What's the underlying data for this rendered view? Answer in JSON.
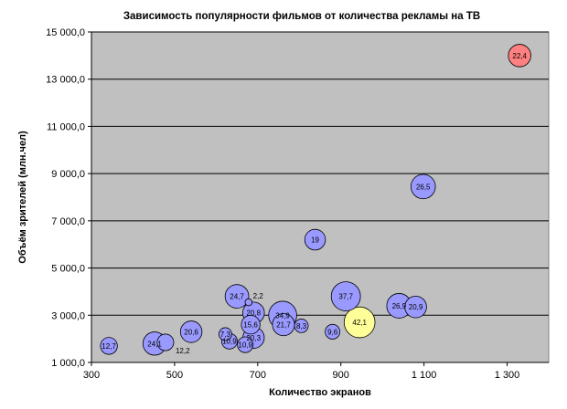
{
  "chart_data": {
    "type": "scatter",
    "title": "Зависимость популярности фильмов от количества рекламы на ТВ",
    "xlabel": "Количество экранов",
    "ylabel": "Объём зрителей (млн.чел)",
    "xlim": [
      300,
      1400
    ],
    "ylim": [
      1000,
      15000
    ],
    "x_ticks": [
      300,
      500,
      700,
      900,
      1100,
      1300
    ],
    "x_tick_labels": [
      "300",
      "500",
      "700",
      "900",
      "1 100",
      "1 300"
    ],
    "y_ticks": [
      1000,
      3000,
      5000,
      7000,
      9000,
      11000,
      13000,
      15000
    ],
    "y_tick_labels": [
      "1 000,0",
      "3 000,0",
      "5 000,0",
      "7 000,0",
      "9 000,0",
      "11 000,0",
      "13 000,0",
      "15 000,0"
    ],
    "grid": "horizontal",
    "plot_background": "#c0c0c0",
    "colors": {
      "default": "#9999ff",
      "max_audience": "#ff8080",
      "largest_bubble": "#ffff99"
    },
    "points": [
      {
        "x": 1330,
        "y": 14000,
        "size": 22.4,
        "label": "22,4",
        "color": "max_audience"
      },
      {
        "x": 1098,
        "y": 8450,
        "size": 26.5,
        "label": "26,5"
      },
      {
        "x": 838,
        "y": 6200,
        "size": 19,
        "label": "19"
      },
      {
        "x": 945,
        "y": 2700,
        "size": 42.1,
        "label": "42,1",
        "color": "largest_bubble"
      },
      {
        "x": 912,
        "y": 3800,
        "size": 37.7,
        "label": "37,7"
      },
      {
        "x": 1040,
        "y": 3400,
        "size": 26.9,
        "label": "26,9"
      },
      {
        "x": 1080,
        "y": 3350,
        "size": 20.9,
        "label": "20,9"
      },
      {
        "x": 650,
        "y": 3800,
        "size": 24.7,
        "label": "24,7"
      },
      {
        "x": 690,
        "y": 3100,
        "size": 20.8,
        "label": "20,8"
      },
      {
        "x": 678,
        "y": 3550,
        "size": 2.2,
        "label": "2,2"
      },
      {
        "x": 760,
        "y": 3000,
        "size": 34.9,
        "label": "34,9"
      },
      {
        "x": 762,
        "y": 2600,
        "size": 21.7,
        "label": "21,7"
      },
      {
        "x": 805,
        "y": 2550,
        "size": 8.3,
        "label": "8,3"
      },
      {
        "x": 880,
        "y": 2300,
        "size": 9.6,
        "label": "9,6"
      },
      {
        "x": 683,
        "y": 2600,
        "size": 15.6,
        "label": "15,6"
      },
      {
        "x": 690,
        "y": 2050,
        "size": 20.3,
        "label": "20,3"
      },
      {
        "x": 622,
        "y": 2200,
        "size": 7.3,
        "label": "7,3"
      },
      {
        "x": 632,
        "y": 1900,
        "size": 10.9,
        "label": "10,9"
      },
      {
        "x": 670,
        "y": 1750,
        "size": 10.9,
        "label": "10,9"
      },
      {
        "x": 540,
        "y": 2300,
        "size": 20.6,
        "label": "20,6"
      },
      {
        "x": 452,
        "y": 1800,
        "size": 24.1,
        "label": "24,1"
      },
      {
        "x": 478,
        "y": 1850,
        "size": 12.2,
        "label": "12,2",
        "label_position": "below-right"
      },
      {
        "x": 342,
        "y": 1700,
        "size": 12.7,
        "label": "12,7"
      }
    ]
  }
}
